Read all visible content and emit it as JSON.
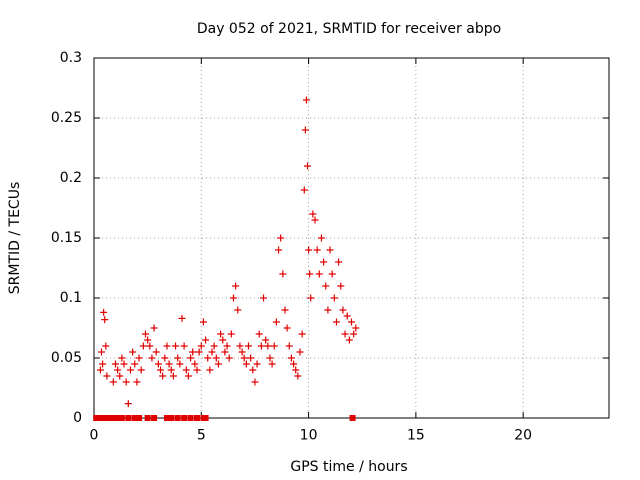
{
  "chart_data": {
    "type": "scatter",
    "title": "Day 052 of 2021, SRMTID for receiver abpo",
    "xlabel": "GPS time / hours",
    "ylabel": "SRMTID / TECUs",
    "xlim": [
      0,
      24
    ],
    "ylim": [
      0,
      0.3
    ],
    "x_ticks": [
      0,
      5,
      10,
      15,
      20
    ],
    "x_tick_labels": [
      "0",
      "5",
      "10",
      "15",
      "20"
    ],
    "y_ticks": [
      0,
      0.05,
      0.1,
      0.15,
      0.2,
      0.25,
      0.3
    ],
    "y_tick_labels": [
      "0",
      "0.05",
      "0.1",
      "0.15",
      "0.2",
      "0.25",
      "0.3"
    ],
    "grid": true,
    "marker": "plus",
    "color": "#e00000",
    "series": [
      {
        "name": "SRMTID",
        "x": [
          0.3,
          0.35,
          0.4,
          0.45,
          0.5,
          0.55,
          0.6,
          0.9,
          1.0,
          1.1,
          1.2,
          1.3,
          1.4,
          1.5,
          1.6,
          1.7,
          1.8,
          1.9,
          2.0,
          2.1,
          2.2,
          2.3,
          2.4,
          2.5,
          2.6,
          2.7,
          2.8,
          2.9,
          3.0,
          3.1,
          3.2,
          3.3,
          3.4,
          3.5,
          3.6,
          3.7,
          3.8,
          3.9,
          4.0,
          4.1,
          4.2,
          4.3,
          4.4,
          4.5,
          4.6,
          4.7,
          4.8,
          4.9,
          5.0,
          5.1,
          5.2,
          5.3,
          5.4,
          5.5,
          5.6,
          5.7,
          5.8,
          5.9,
          6.0,
          6.1,
          6.2,
          6.3,
          6.4,
          6.5,
          6.6,
          6.7,
          6.8,
          6.9,
          7.0,
          7.1,
          7.2,
          7.3,
          7.4,
          7.5,
          7.6,
          7.7,
          7.8,
          7.9,
          8.0,
          8.1,
          8.2,
          8.3,
          8.4,
          8.5,
          8.6,
          8.7,
          8.8,
          8.9,
          9.0,
          9.1,
          9.2,
          9.3,
          9.4,
          9.5,
          9.6,
          9.7,
          9.8,
          9.85,
          9.9,
          9.95,
          10.0,
          10.05,
          10.1,
          10.2,
          10.3,
          10.4,
          10.5,
          10.6,
          10.7,
          10.8,
          10.9,
          11.0,
          11.1,
          11.2,
          11.3,
          11.4,
          11.5,
          11.6,
          11.7,
          11.8,
          11.9,
          12.0,
          12.1,
          12.2
        ],
        "y": [
          0.04,
          0.055,
          0.045,
          0.088,
          0.082,
          0.06,
          0.035,
          0.03,
          0.045,
          0.04,
          0.035,
          0.05,
          0.045,
          0.03,
          0.012,
          0.04,
          0.055,
          0.045,
          0.03,
          0.05,
          0.04,
          0.06,
          0.07,
          0.065,
          0.06,
          0.05,
          0.075,
          0.055,
          0.045,
          0.04,
          0.035,
          0.05,
          0.06,
          0.045,
          0.04,
          0.035,
          0.06,
          0.05,
          0.045,
          0.083,
          0.06,
          0.04,
          0.035,
          0.05,
          0.055,
          0.045,
          0.04,
          0.055,
          0.06,
          0.08,
          0.065,
          0.05,
          0.04,
          0.055,
          0.06,
          0.05,
          0.045,
          0.07,
          0.065,
          0.055,
          0.06,
          0.05,
          0.07,
          0.1,
          0.11,
          0.09,
          0.06,
          0.055,
          0.05,
          0.045,
          0.06,
          0.05,
          0.04,
          0.03,
          0.045,
          0.07,
          0.06,
          0.1,
          0.065,
          0.06,
          0.05,
          0.045,
          0.06,
          0.08,
          0.14,
          0.15,
          0.12,
          0.09,
          0.075,
          0.06,
          0.05,
          0.045,
          0.04,
          0.035,
          0.055,
          0.07,
          0.19,
          0.24,
          0.265,
          0.21,
          0.14,
          0.12,
          0.1,
          0.17,
          0.165,
          0.14,
          0.12,
          0.15,
          0.13,
          0.11,
          0.09,
          0.14,
          0.12,
          0.1,
          0.08,
          0.13,
          0.11,
          0.09,
          0.07,
          0.085,
          0.065,
          0.08,
          0.07,
          0.075
        ],
        "y_zero_x": [
          0.1,
          0.3,
          0.5,
          0.7,
          0.9,
          1.1,
          1.3,
          1.6,
          1.9,
          2.1,
          2.5,
          2.8,
          3.4,
          3.6,
          3.9,
          4.2,
          4.5,
          4.8,
          5.1,
          5.2,
          12.05
        ]
      }
    ]
  }
}
